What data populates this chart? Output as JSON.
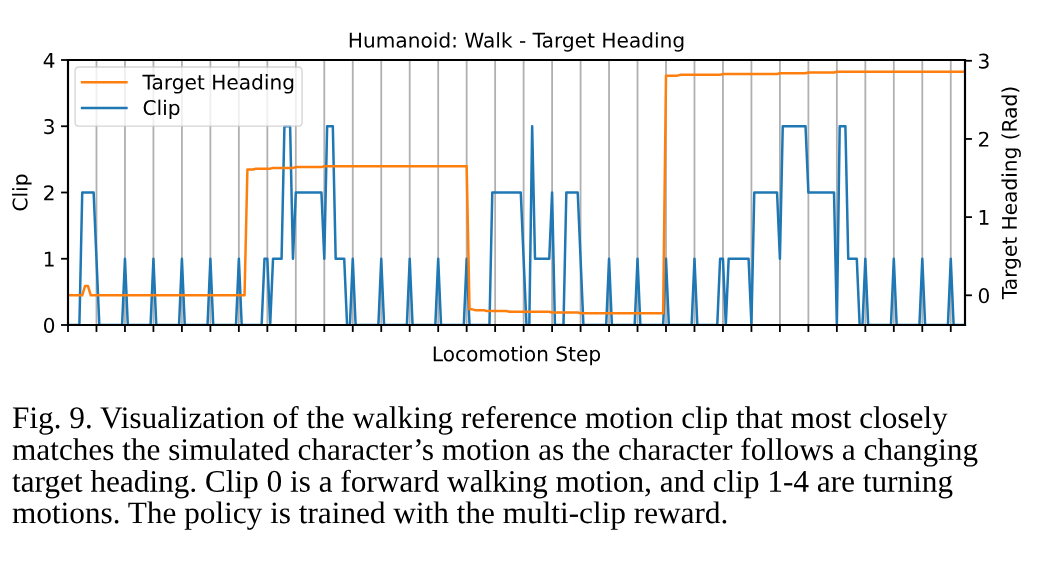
{
  "chart_data": {
    "type": "line",
    "title": "Humanoid: Walk - Target Heading",
    "xlabel": "Locomotion Step",
    "ylabel": "Clip",
    "y2label": "Target Heading (Rad)",
    "categories": [
      null,
      null,
      null,
      null,
      null,
      null,
      null,
      null,
      null,
      null,
      null,
      null,
      null,
      null,
      null,
      null,
      null,
      null,
      null,
      null,
      null,
      null,
      null,
      null,
      null,
      null,
      null,
      null,
      null,
      null,
      null,
      null,
      null,
      null,
      null,
      null,
      null,
      null,
      null,
      null,
      null,
      null,
      null,
      null,
      null,
      null,
      null,
      null,
      null,
      null,
      null,
      null,
      null,
      null,
      null,
      null,
      null,
      null,
      null,
      null,
      null,
      null,
      null,
      null,
      null,
      null,
      null,
      null,
      null,
      null,
      null,
      null,
      null,
      null,
      null,
      null,
      null,
      null,
      null,
      null,
      null,
      null,
      null,
      null,
      null,
      null,
      null,
      null,
      null,
      null,
      null,
      null,
      null,
      null,
      null,
      null,
      null,
      null,
      null,
      null,
      null,
      null,
      null,
      null,
      null,
      null,
      null,
      null,
      null,
      null,
      null,
      null,
      null,
      null,
      null,
      null,
      null,
      null,
      null,
      null,
      null,
      null,
      null,
      null,
      null,
      null,
      null,
      null,
      null,
      null,
      null,
      null,
      null,
      null,
      null,
      null,
      null,
      null,
      null,
      null,
      null,
      null,
      null,
      null,
      null,
      null,
      null,
      null,
      null,
      null,
      null,
      null,
      null,
      null,
      null,
      null,
      null,
      null,
      null,
      null,
      null,
      null,
      null,
      null,
      null,
      null,
      null,
      null,
      null,
      null,
      null,
      null,
      null,
      null,
      null,
      null,
      null,
      null,
      null,
      null,
      null,
      null,
      null,
      null,
      null,
      null,
      null,
      null,
      null,
      null,
      null,
      null,
      null,
      null,
      null,
      null,
      null,
      null,
      null,
      null,
      null,
      null,
      null,
      null,
      null,
      null,
      null,
      null,
      null,
      null,
      null,
      null,
      null,
      null,
      null,
      null,
      null,
      null,
      null,
      null,
      null,
      null,
      null,
      null,
      null,
      null,
      null,
      null,
      null,
      null,
      null,
      null,
      null,
      null,
      null,
      null,
      null,
      null,
      null,
      null,
      null,
      null,
      null,
      null,
      null,
      null,
      null,
      null,
      null,
      null,
      null,
      null,
      null,
      null,
      null,
      null,
      null,
      null,
      null,
      null,
      null,
      null,
      null,
      null,
      null,
      null,
      null,
      null,
      null,
      null,
      null,
      null,
      null,
      null,
      null,
      null,
      null,
      null,
      null,
      null,
      null,
      null,
      null,
      null,
      null,
      null,
      null,
      null,
      null,
      null,
      null,
      null,
      null,
      null,
      null,
      null,
      null,
      null,
      null,
      null,
      null,
      null,
      null,
      null,
      null,
      null,
      null,
      null,
      null,
      null,
      null,
      null,
      null,
      null,
      null,
      null
    ],
    "series": [
      {
        "name": "Target Heading",
        "color": "#ff7f0e",
        "axis": "y2",
        "values": [
          0,
          0,
          0,
          0,
          0,
          0,
          0.12,
          0.12,
          0,
          0,
          0,
          0,
          0,
          0,
          0,
          0,
          0,
          0,
          0,
          0,
          0,
          0,
          0,
          0,
          0,
          0,
          0,
          0,
          0,
          0,
          0,
          0,
          0,
          0,
          0,
          0,
          0,
          0,
          0,
          0,
          0,
          0,
          0,
          0,
          0,
          0,
          0,
          0,
          0,
          0,
          0,
          0,
          0,
          0,
          0,
          0,
          0,
          0,
          0,
          0,
          0,
          0,
          0,
          1.61,
          1.61,
          1.61,
          1.62,
          1.62,
          1.62,
          1.62,
          1.62,
          1.62,
          1.63,
          1.63,
          1.63,
          1.63,
          1.63,
          1.63,
          1.63,
          1.63,
          1.64,
          1.64,
          1.64,
          1.64,
          1.64,
          1.64,
          1.64,
          1.64,
          1.64,
          1.64,
          1.65,
          1.65,
          1.65,
          1.65,
          1.65,
          1.65,
          1.65,
          1.65,
          1.65,
          1.65,
          1.65,
          1.65,
          1.65,
          1.65,
          1.65,
          1.65,
          1.65,
          1.65,
          1.65,
          1.65,
          1.65,
          1.65,
          1.65,
          1.65,
          1.65,
          1.65,
          1.65,
          1.65,
          1.65,
          1.65,
          1.65,
          1.65,
          1.65,
          1.65,
          1.65,
          1.65,
          1.65,
          1.65,
          1.65,
          1.65,
          1.65,
          1.65,
          1.65,
          1.65,
          1.65,
          1.65,
          1.65,
          1.65,
          1.65,
          1.65,
          1.65,
          -0.18,
          -0.18,
          -0.19,
          -0.19,
          -0.19,
          -0.19,
          -0.2,
          -0.2,
          -0.2,
          -0.2,
          -0.2,
          -0.2,
          -0.2,
          -0.2,
          -0.21,
          -0.21,
          -0.21,
          -0.21,
          -0.21,
          -0.21,
          -0.21,
          -0.21,
          -0.21,
          -0.21,
          -0.21,
          -0.21,
          -0.21,
          -0.21,
          -0.21,
          -0.22,
          -0.22,
          -0.22,
          -0.22,
          -0.22,
          -0.22,
          -0.22,
          -0.22,
          -0.22,
          -0.22,
          -0.23,
          -0.23,
          -0.23,
          -0.23,
          -0.23,
          -0.23,
          -0.23,
          -0.23,
          -0.23,
          -0.23,
          -0.23,
          -0.23,
          -0.23,
          -0.23,
          -0.23,
          -0.23,
          -0.23,
          -0.23,
          -0.23,
          -0.23,
          -0.23,
          -0.23,
          -0.23,
          -0.23,
          -0.23,
          -0.23,
          -0.23,
          -0.23,
          -0.23,
          -0.23,
          2.81,
          2.81,
          2.81,
          2.81,
          2.81,
          2.82,
          2.82,
          2.82,
          2.82,
          2.82,
          2.82,
          2.82,
          2.82,
          2.82,
          2.82,
          2.82,
          2.82,
          2.82,
          2.82,
          2.82,
          2.83,
          2.83,
          2.83,
          2.83,
          2.83,
          2.83,
          2.83,
          2.83,
          2.83,
          2.83,
          2.83,
          2.83,
          2.83,
          2.83,
          2.83,
          2.83,
          2.83,
          2.83,
          2.83,
          2.83,
          2.84,
          2.84,
          2.84,
          2.84,
          2.84,
          2.84,
          2.84,
          2.84,
          2.84,
          2.84,
          2.85,
          2.85,
          2.85,
          2.85,
          2.85,
          2.85,
          2.85,
          2.85,
          2.85,
          2.85,
          2.86,
          2.86,
          2.86,
          2.86,
          2.86,
          2.86,
          2.86,
          2.86,
          2.86,
          2.86,
          2.86,
          2.86,
          2.86,
          2.86,
          2.86,
          2.86,
          2.86,
          2.86,
          2.86,
          2.86,
          2.86,
          2.86,
          2.86,
          2.86,
          2.86,
          2.86,
          2.86,
          2.86,
          2.86,
          2.86,
          2.86,
          2.86,
          2.86,
          2.86,
          2.86,
          2.86,
          2.86,
          2.86,
          2.86,
          2.86,
          2.86,
          2.86,
          2.86,
          2.86,
          2.86,
          2.86
        ]
      },
      {
        "name": "Clip",
        "color": "#1f77b4",
        "values": [
          0,
          0,
          0,
          0,
          0,
          2,
          2,
          2,
          2,
          2,
          1,
          0,
          0,
          0,
          0,
          0,
          0,
          0,
          0,
          0,
          1,
          0,
          0,
          0,
          0,
          0,
          0,
          0,
          0,
          0,
          1,
          0,
          0,
          0,
          0,
          0,
          0,
          0,
          0,
          0,
          1,
          0,
          0,
          0,
          0,
          0,
          0,
          0,
          0,
          0,
          1,
          0,
          0,
          0,
          0,
          0,
          0,
          0,
          0,
          0,
          1,
          0,
          0,
          0,
          0,
          0,
          0,
          0,
          0,
          1,
          1,
          0,
          1,
          1,
          1,
          1,
          3,
          3,
          3,
          1,
          2,
          2,
          2,
          2,
          2,
          2,
          2,
          2,
          2,
          2,
          1,
          3,
          3,
          3,
          1,
          1,
          1,
          1,
          0,
          0,
          1,
          0,
          0,
          0,
          0,
          0,
          0,
          0,
          0,
          0,
          1,
          0,
          0,
          0,
          0,
          0,
          0,
          0,
          0,
          0,
          1,
          0,
          0,
          0,
          0,
          0,
          0,
          0,
          0,
          0,
          1,
          0,
          0,
          0,
          0,
          0,
          0,
          0,
          0,
          0,
          1,
          0,
          0,
          0,
          0,
          0,
          0,
          0,
          0,
          2,
          2,
          2,
          2,
          2,
          2,
          2,
          2,
          2,
          2,
          2,
          1,
          0,
          0,
          3,
          1,
          1,
          1,
          1,
          1,
          1,
          2,
          0,
          0,
          0,
          0,
          2,
          2,
          2,
          2,
          2,
          1,
          0,
          0,
          0,
          0,
          0,
          0,
          0,
          0,
          0,
          1,
          0,
          0,
          0,
          0,
          0,
          0,
          0,
          0,
          0,
          1,
          0,
          0,
          0,
          0,
          0,
          0,
          0,
          0,
          0,
          1,
          0,
          0,
          0,
          0,
          0,
          0,
          0,
          0,
          0,
          1,
          0,
          0,
          0,
          0,
          0,
          0,
          0,
          0,
          1,
          1,
          0,
          1,
          1,
          1,
          1,
          1,
          1,
          1,
          1,
          0,
          2,
          2,
          2,
          2,
          2,
          2,
          2,
          2,
          2,
          1,
          3,
          3,
          3,
          3,
          3,
          3,
          3,
          3,
          3,
          2,
          2,
          2,
          2,
          2,
          2,
          2,
          2,
          2,
          2,
          0,
          3,
          3,
          3,
          1,
          1,
          1,
          1,
          0,
          0,
          1,
          0,
          0,
          0,
          0,
          0,
          0,
          0,
          0,
          0,
          1,
          0,
          0,
          0,
          0,
          0,
          0,
          0,
          0,
          0,
          1,
          0,
          0,
          0,
          0,
          0,
          0,
          0,
          0,
          0,
          1,
          0,
          0,
          0,
          0,
          0
        ]
      }
    ],
    "ylim": [
      0,
      4
    ],
    "yticks": [
      0,
      1,
      2,
      3,
      4
    ],
    "y2lim": [
      -0.38,
      3.01
    ],
    "y2ticks": [
      0,
      1,
      2,
      3
    ],
    "grid": "x",
    "legend": "top left",
    "annotations": [
      "Fig. 9. Visualization of the walking reference motion clip that most closely matches the simulated character’s motion as the character follows a changing target heading. Clip 0 is a forward walking motion, and clip 1-4 are turning motions. The policy is trained with the multi-clip reward."
    ]
  }
}
